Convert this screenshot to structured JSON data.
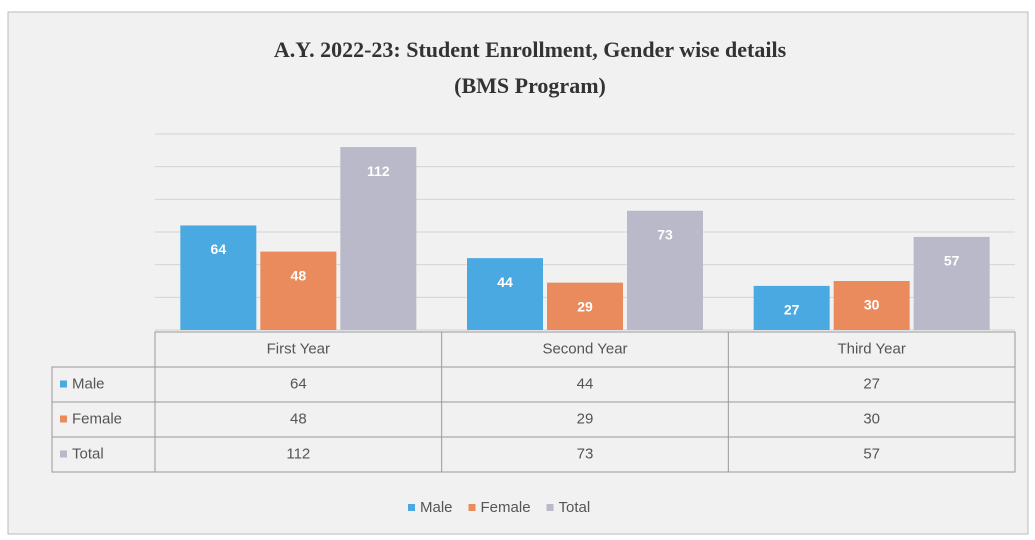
{
  "chart_data": {
    "type": "bar",
    "title": "A.Y. 2022-23: Student Enrollment, Gender wise details",
    "subtitle": "(BMS Program)",
    "categories": [
      "First Year",
      "Second Year",
      "Third Year"
    ],
    "series": [
      {
        "name": "Male",
        "color": "#4ba9e1",
        "values": [
          64,
          44,
          27
        ]
      },
      {
        "name": "Female",
        "color": "#e98b5c",
        "values": [
          48,
          29,
          30
        ]
      },
      {
        "name": "Total",
        "color": "#b9b9c9",
        "values": [
          112,
          73,
          57
        ]
      }
    ],
    "ylim": [
      0,
      120
    ],
    "yticks": [
      0,
      20,
      40,
      60,
      80,
      100,
      120
    ],
    "grid": true
  }
}
